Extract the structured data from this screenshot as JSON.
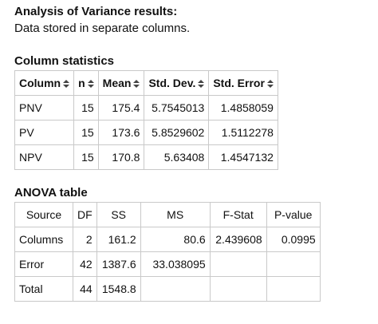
{
  "heading": "Analysis of Variance results:",
  "subheading": "Data stored in separate columns.",
  "stats": {
    "title": "Column statistics",
    "headers": [
      "Column",
      "n",
      "Mean",
      "Std. Dev.",
      "Std. Error"
    ],
    "rows": [
      [
        "PNV",
        "15",
        "175.4",
        "5.7545013",
        "1.4858059"
      ],
      [
        "PV",
        "15",
        "173.6",
        "5.8529602",
        "1.5112278"
      ],
      [
        "NPV",
        "15",
        "170.8",
        "5.63408",
        "1.4547132"
      ]
    ]
  },
  "anova": {
    "title": "ANOVA table",
    "headers": [
      "Source",
      "DF",
      "SS",
      "MS",
      "F-Stat",
      "P-value"
    ],
    "rows": [
      [
        "Columns",
        "2",
        "161.2",
        "80.6",
        "2.439608",
        "0.0995"
      ],
      [
        "Error",
        "42",
        "1387.6",
        "33.038095",
        "",
        ""
      ],
      [
        "Total",
        "44",
        "1548.8",
        "",
        "",
        ""
      ]
    ]
  },
  "icons": {
    "sort": "sort-icon"
  }
}
